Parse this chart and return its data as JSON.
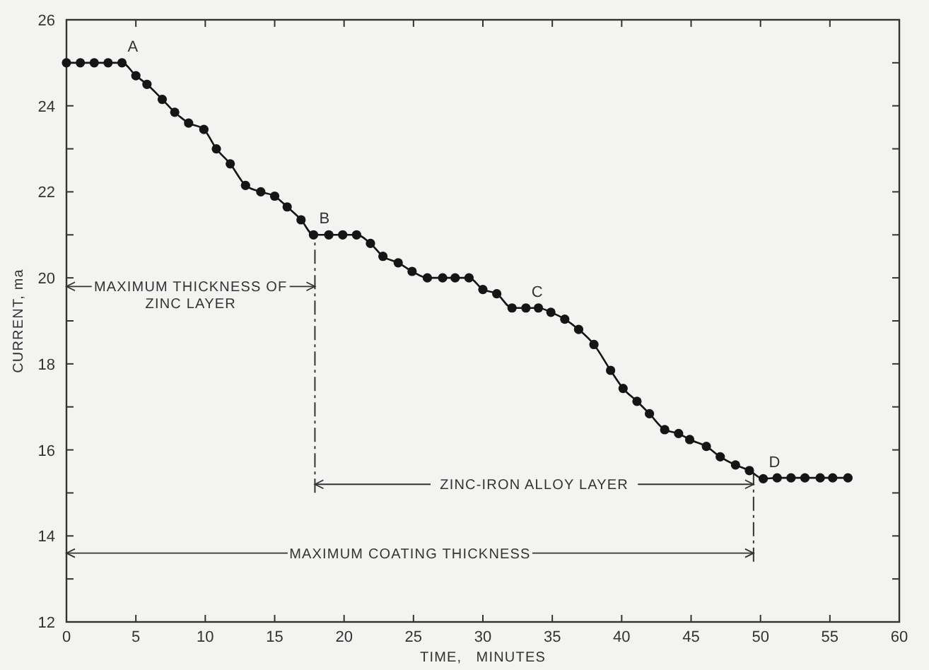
{
  "chart_data": {
    "type": "line",
    "xlabel": "TIME,   MINUTES",
    "ylabel": "CURRENT, ma",
    "xlim": [
      0,
      60
    ],
    "ylim": [
      12,
      26
    ],
    "xticks": [
      0,
      5,
      10,
      15,
      20,
      25,
      30,
      35,
      40,
      45,
      50,
      55,
      60
    ],
    "yticks": [
      12,
      {
        "value": 13,
        "label": null
      },
      14,
      {
        "value": 15,
        "label": null
      },
      16,
      {
        "value": 17,
        "label": null
      },
      18,
      {
        "value": 19,
        "label": null
      },
      20,
      {
        "value": 21,
        "label": null
      },
      22,
      {
        "value": 23,
        "label": null
      },
      24,
      {
        "value": 25,
        "label": null
      },
      26
    ],
    "grid": false,
    "marker": "circle",
    "line_style": "solid",
    "series": [
      {
        "color": "#151515",
        "x": [
          0,
          1,
          2,
          3,
          4,
          5,
          5.8,
          6.9,
          7.8,
          8.8,
          9.9,
          10.8,
          11.8,
          12.9,
          14,
          15,
          15.9,
          16.9,
          17.8,
          18.9,
          19.9,
          20.9,
          21.9,
          22.8,
          23.9,
          24.9,
          26,
          27.1,
          28,
          29,
          30,
          31,
          32.1,
          33.1,
          34,
          34.9,
          35.9,
          36.9,
          38,
          39.2,
          40.1,
          41.1,
          42,
          43.1,
          44.1,
          44.9,
          46.1,
          47.1,
          48.2,
          49.2,
          50.2,
          51.2,
          52.2,
          53.2,
          54.3,
          55.2,
          56.3
        ],
        "values": [
          25,
          25,
          25,
          25,
          25,
          24.7,
          24.5,
          24.15,
          23.85,
          23.6,
          23.45,
          23,
          22.65,
          22.15,
          22,
          21.9,
          21.65,
          21.35,
          21,
          21,
          21,
          21,
          20.8,
          20.5,
          20.35,
          20.15,
          20,
          20,
          20,
          20,
          19.73,
          19.63,
          19.3,
          19.3,
          19.3,
          19.2,
          19.04,
          18.8,
          18.45,
          17.85,
          17.43,
          17.13,
          16.84,
          16.47,
          16.38,
          16.24,
          16.08,
          15.84,
          15.65,
          15.52,
          15.33,
          15.35,
          15.35,
          15.35,
          15.35,
          15.35,
          15.35
        ]
      }
    ],
    "ref_lines": [
      {
        "axis": "x",
        "value": 17.9,
        "line_style": "dashed"
      },
      {
        "axis": "x",
        "value": 49.5,
        "line_style": "dashed"
      }
    ],
    "annotations": [
      {
        "text": "A",
        "x": 4,
        "y": 25
      },
      {
        "text": "B",
        "x": 17.8,
        "y": 21
      },
      {
        "text": "C",
        "x": 33.1,
        "y": 19.3
      },
      {
        "text": "D",
        "x": 50.2,
        "y": 15.33
      },
      {
        "text": "MAXIMUM THICKNESS OF ZINC LAYER",
        "x": 17.9,
        "y": 19.8
      },
      {
        "text": "ZINC-IRON ALLOY LAYER",
        "x": 49.5,
        "y": 15.2
      },
      {
        "text": "MAXIMUM COATING THICKNESS",
        "x": 49.5,
        "y": 13.6
      }
    ]
  }
}
